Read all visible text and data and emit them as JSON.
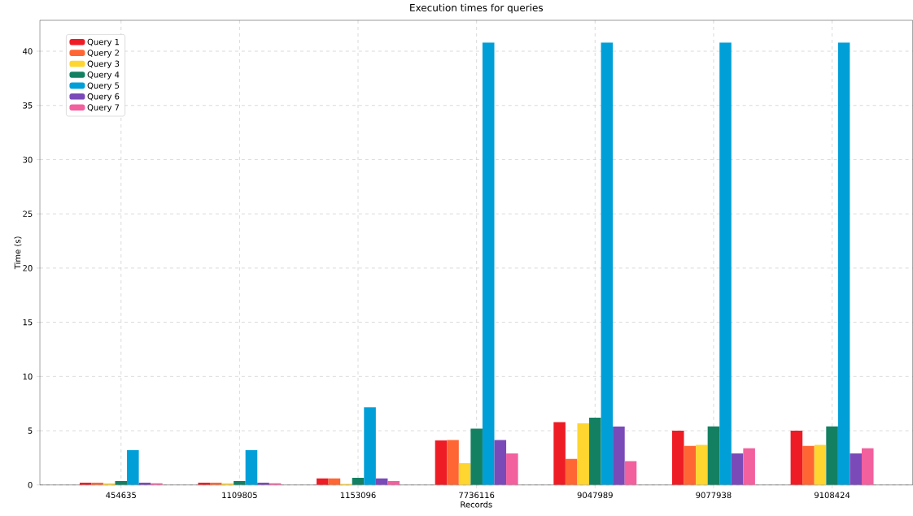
{
  "chart_data": {
    "type": "bar",
    "title": "Execution times for queries",
    "xlabel": "Records",
    "ylabel": "Time (s)",
    "categories": [
      "454635",
      "1109805",
      "1153096",
      "7736116",
      "9047989",
      "9077938",
      "9108424"
    ],
    "series": [
      {
        "name": "Query 1",
        "color": "#ee1c25",
        "values": [
          0.2,
          0.2,
          0.6,
          4.1,
          5.8,
          5.0,
          5.0
        ]
      },
      {
        "name": "Query 2",
        "color": "#ff6633",
        "values": [
          0.2,
          0.2,
          0.6,
          4.15,
          2.4,
          3.6,
          3.6
        ]
      },
      {
        "name": "Query 3",
        "color": "#ffd530",
        "values": [
          0.15,
          0.15,
          0.1,
          2.0,
          5.7,
          3.7,
          3.7
        ]
      },
      {
        "name": "Query 4",
        "color": "#138062",
        "values": [
          0.35,
          0.35,
          0.65,
          5.2,
          6.2,
          5.4,
          5.4
        ]
      },
      {
        "name": "Query 5",
        "color": "#009fd8",
        "values": [
          3.2,
          3.2,
          7.15,
          40.8,
          40.8,
          40.8,
          40.8
        ]
      },
      {
        "name": "Query 6",
        "color": "#7a4ab8",
        "values": [
          0.2,
          0.2,
          0.6,
          4.15,
          5.4,
          2.9,
          2.9
        ]
      },
      {
        "name": "Query 7",
        "color": "#f2609e",
        "values": [
          0.15,
          0.15,
          0.35,
          2.9,
          2.2,
          3.4,
          3.4
        ]
      }
    ],
    "ylim": [
      0,
      42.85
    ],
    "yticks": [
      0,
      5,
      10,
      15,
      20,
      25,
      30,
      35,
      40
    ],
    "grid": true,
    "legend": "top left"
  }
}
